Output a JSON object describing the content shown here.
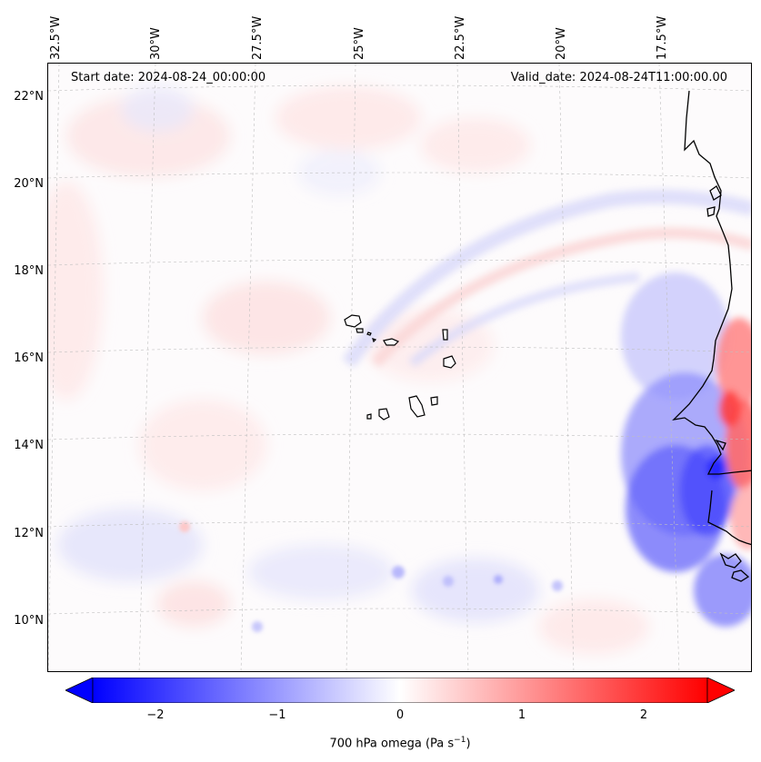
{
  "map": {
    "start_date_text": "Start date: 2024-08-24_00:00:00",
    "valid_date_text": "Valid_date: 2024-08-24T11:00:00.00",
    "longitude_ticks": [
      "32.5°W",
      "30°W",
      "27.5°W",
      "25°W",
      "22.5°W",
      "20°W",
      "17.5°W"
    ],
    "latitude_ticks": [
      "22°N",
      "20°N",
      "18°N",
      "16°N",
      "14°N",
      "12°N",
      "10°N"
    ],
    "gridlines": true,
    "coastline_color": "#000000"
  },
  "colorbar": {
    "label_main": "700 hPa omega (Pa s",
    "label_exp": "−1",
    "label_end": ")",
    "ticks": [
      "−2",
      "−1",
      "0",
      "1",
      "2"
    ],
    "range": [
      -2.7,
      2.7
    ],
    "colormap": "bwr",
    "color_min": "#0000ff",
    "color_mid": "#ffffff",
    "color_max": "#ff0000",
    "extend": "both"
  }
}
